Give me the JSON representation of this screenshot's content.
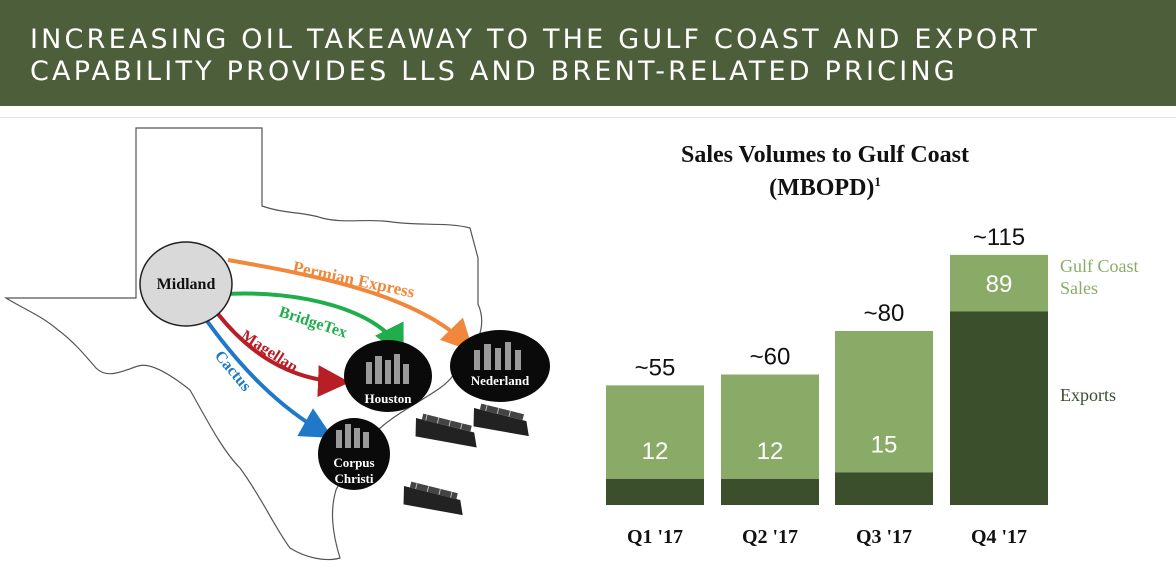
{
  "header": {
    "title_line1": "INCREASING OIL TAKEAWAY TO THE GULF COAST AND EXPORT",
    "title_line2": "CAPABILITY PROVIDES LLS AND BRENT-RELATED PRICING"
  },
  "map": {
    "origin": "Midland",
    "destinations": {
      "houston": "Houston",
      "nederland": "Nederland",
      "corpus1": "Corpus",
      "corpus2": "Christi"
    },
    "pipelines": [
      {
        "name": "Permian Express",
        "color": "#f0873a"
      },
      {
        "name": "BridgeTex",
        "color": "#1fae4b"
      },
      {
        "name": "Magellan",
        "color": "#b81e25"
      },
      {
        "name": "Cactus",
        "color": "#1f78c8"
      }
    ]
  },
  "chart_data": {
    "type": "bar",
    "title": "Sales Volumes to Gulf Coast",
    "subtitle": "(MBOPD)",
    "subtitle_footnote": "1",
    "categories": [
      "Q1 '17",
      "Q2 '17",
      "Q3 '17",
      "Q4 '17"
    ],
    "totals_labels": [
      "~55",
      "~60",
      "~80",
      "~115"
    ],
    "series": [
      {
        "name": "Exports",
        "values": [
          12,
          12,
          15,
          89
        ],
        "color": "#3b4f2c"
      },
      {
        "name": "Gulf Coast Sales",
        "values": [
          43,
          48,
          65,
          26
        ],
        "color": "#8aab68"
      }
    ],
    "data_labels": [
      "12",
      "12",
      "15",
      "89"
    ],
    "legend": {
      "sales_line1": "Gulf Coast",
      "sales_line2": "Sales",
      "exports": "Exports"
    },
    "ylim": [
      0,
      120
    ],
    "grid": false
  }
}
